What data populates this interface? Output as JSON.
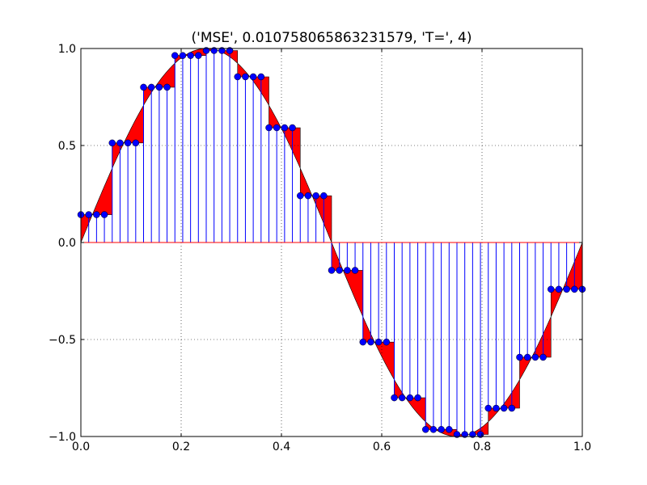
{
  "chart_data": {
    "type": "line",
    "title": "('MSE', 0.010758065863231579, 'T=', 4)",
    "xlabel": "",
    "ylabel": "",
    "xlim": [
      0.0,
      1.0
    ],
    "ylim": [
      -1.0,
      1.0
    ],
    "x_ticks": [
      0.0,
      0.2,
      0.4,
      0.6,
      0.8,
      1.0
    ],
    "x_tick_labels": [
      "0.0",
      "0.2",
      "0.4",
      "0.6",
      "0.8",
      "1.0"
    ],
    "y_ticks": [
      -1.0,
      -0.5,
      0.0,
      0.5,
      1.0
    ],
    "y_tick_labels": [
      "−1.0",
      "−0.5",
      "0.0",
      "0.5",
      "1.0"
    ],
    "grid": true,
    "legend": "none",
    "colors": {
      "fill": "#ff0000",
      "stem": "#0000ff",
      "marker": "#0000ff",
      "baseline": "#ff0000"
    },
    "series": [
      {
        "type": "area",
        "function": "sin(2*pi*x)",
        "x_range": [
          0.0,
          1.0
        ]
      },
      {
        "type": "stem",
        "x": [
          0,
          0.015625,
          0.03125,
          0.046875,
          0.0625,
          0.078125,
          0.09375,
          0.109375,
          0.125,
          0.140625,
          0.15625,
          0.171875,
          0.1875,
          0.203125,
          0.21875,
          0.234375,
          0.25,
          0.265625,
          0.28125,
          0.296875,
          0.3125,
          0.328125,
          0.34375,
          0.359375,
          0.375,
          0.390625,
          0.40625,
          0.421875,
          0.4375,
          0.453125,
          0.46875,
          0.484375,
          0.5,
          0.515625,
          0.53125,
          0.546875,
          0.5625,
          0.578125,
          0.59375,
          0.609375,
          0.625,
          0.640625,
          0.65625,
          0.671875,
          0.6875,
          0.703125,
          0.71875,
          0.734375,
          0.75,
          0.765625,
          0.78125,
          0.796875,
          0.8125,
          0.828125,
          0.84375,
          0.859375,
          0.875,
          0.890625,
          0.90625,
          0.921875,
          0.9375,
          0.953125,
          0.96875,
          0.984375,
          1.0
        ],
        "y": [
          0.1435,
          0.1435,
          0.1435,
          0.1435,
          0.5131,
          0.5131,
          0.5131,
          0.5131,
          0.8004,
          0.8004,
          0.8004,
          0.8004,
          0.9638,
          0.9638,
          0.9638,
          0.9638,
          0.9896,
          0.9896,
          0.9896,
          0.9896,
          0.8542,
          0.8542,
          0.8542,
          0.8542,
          0.5916,
          0.5916,
          0.5916,
          0.5916,
          0.241,
          0.241,
          0.241,
          0.241,
          -0.1435,
          -0.1435,
          -0.1435,
          -0.1435,
          -0.5131,
          -0.5131,
          -0.5131,
          -0.5131,
          -0.8004,
          -0.8004,
          -0.8004,
          -0.8004,
          -0.9638,
          -0.9638,
          -0.9638,
          -0.9638,
          -0.9896,
          -0.9896,
          -0.9896,
          -0.9896,
          -0.8542,
          -0.8542,
          -0.8542,
          -0.8542,
          -0.5916,
          -0.5916,
          -0.5916,
          -0.5916,
          -0.241,
          -0.241,
          -0.241,
          -0.241,
          -0.241
        ]
      }
    ]
  }
}
